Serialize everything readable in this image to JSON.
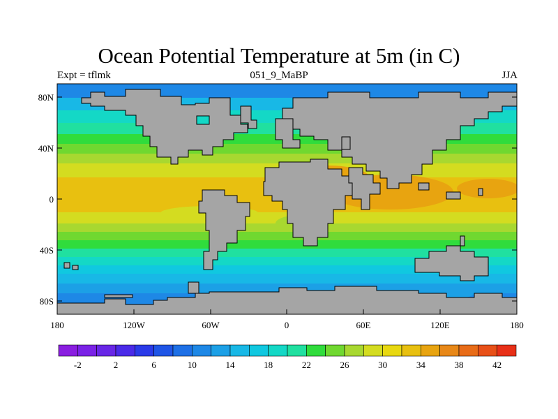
{
  "title": "Ocean Potential Temperature at 5m (in C)",
  "subtitle_left": "Expt = tflmk",
  "subtitle_center": "051_9_MaBP",
  "subtitle_right": "JJA",
  "lat_ticks": [
    "80N",
    "40N",
    "0",
    "40S",
    "80S"
  ],
  "lon_ticks": [
    "180",
    "120W",
    "60W",
    "0",
    "60E",
    "120E",
    "180"
  ],
  "colorbar": {
    "labels": [
      "-2",
      "2",
      "6",
      "10",
      "14",
      "18",
      "22",
      "26",
      "30",
      "34",
      "38",
      "42"
    ],
    "colors": [
      "#8a1ee0",
      "#7a22e6",
      "#6826e6",
      "#4a2ae8",
      "#2a3ae8",
      "#1f55e6",
      "#1e70e6",
      "#1e88e6",
      "#1ca0e6",
      "#18b8e6",
      "#10c8e0",
      "#14d8c6",
      "#20e0a0",
      "#30dc3c",
      "#70d830",
      "#a8d830",
      "#d4dc20",
      "#e8d810",
      "#e8c010",
      "#e8a410",
      "#e88818",
      "#e86c18",
      "#e85018",
      "#e83018"
    ]
  },
  "chart_data": {
    "type": "heatmap",
    "variable": "Ocean Potential Temperature at 5m",
    "units": "C",
    "level_range": [
      -2,
      42
    ],
    "contour_interval": 2,
    "season": "JJA",
    "experiment": "tflmk",
    "land_color": "#a5a5a5"
  }
}
